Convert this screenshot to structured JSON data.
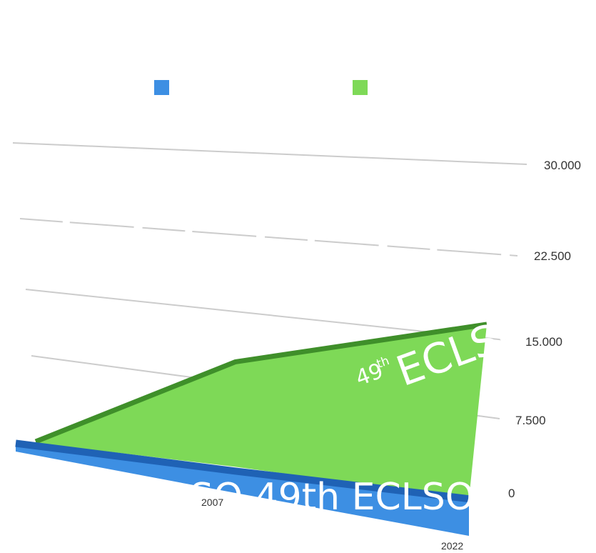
{
  "chart_data": {
    "type": "area",
    "title": "",
    "xlabel": "",
    "ylabel": "",
    "x": [
      "2007",
      "2022"
    ],
    "x_tick_labels": [
      "2007",
      "2022"
    ],
    "y_tick_labels": [
      "30.000",
      "22.500",
      "15.000",
      "7.500",
      "0"
    ],
    "ylim": [
      0,
      30000
    ],
    "grid": true,
    "legend": "top",
    "series": [
      {
        "color": "#3d8fe3",
        "values": [
          2000,
          3500
        ]
      },
      {
        "color": "#7ed957",
        "values": [
          10000,
          16500
        ]
      }
    ]
  },
  "overlay": {
    "banner_text": "ECLSO  49th ECLSO",
    "stamp_number": "49",
    "stamp_suffix": "th",
    "stamp_word": "ECLSO"
  }
}
